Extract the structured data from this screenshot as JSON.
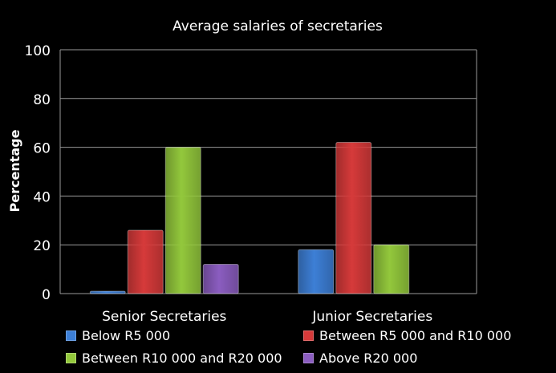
{
  "chart_data": {
    "type": "bar",
    "title": "Average salaries of secretaries",
    "xlabel": "",
    "ylabel": "Percentage",
    "ylim": [
      0,
      100
    ],
    "yticks": [
      0,
      20,
      40,
      60,
      80,
      100
    ],
    "grid": true,
    "legend_position": "bottom",
    "categories": [
      "Senior Secretaries",
      "Junior Secretaries"
    ],
    "series": [
      {
        "name": "Below R5 000",
        "color": "#3d7fd6",
        "values": [
          1,
          18
        ]
      },
      {
        "name": "Between R5 000 and R10 000",
        "color": "#d63a3a",
        "values": [
          26,
          62
        ]
      },
      {
        "name": "Between R10 000 and R20 000",
        "color": "#93c83c",
        "values": [
          60,
          20
        ]
      },
      {
        "name": "Above R20 000",
        "color": "#8b5dc0",
        "values": [
          12,
          0
        ]
      }
    ]
  }
}
